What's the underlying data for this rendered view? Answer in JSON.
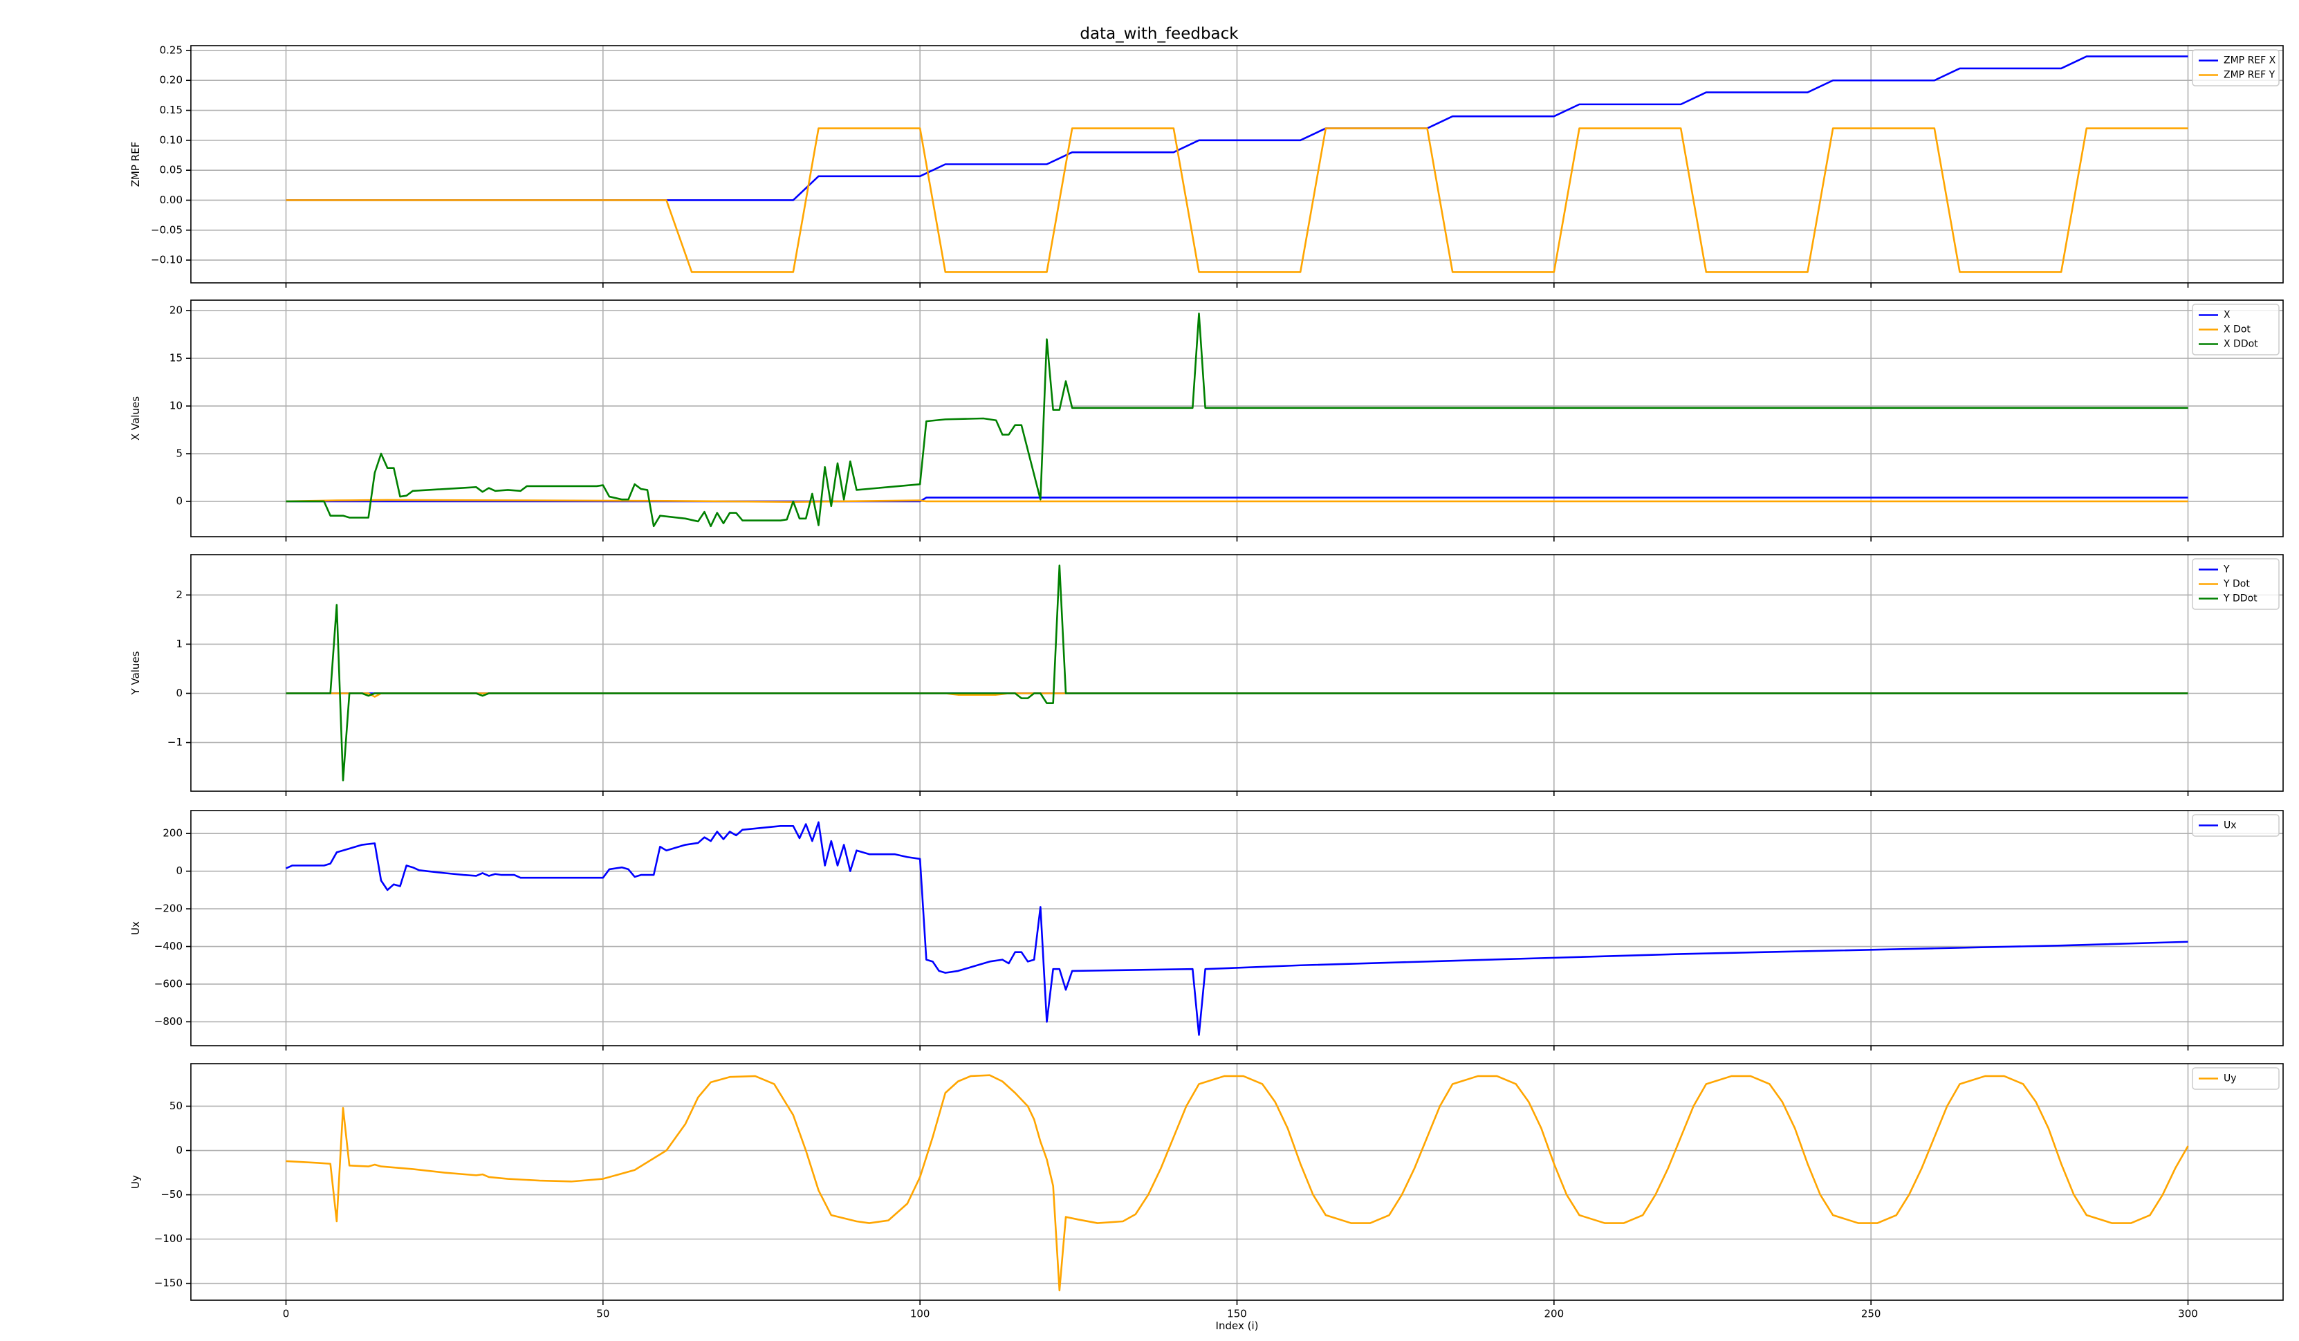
{
  "title": "data_with_feedback",
  "chart_data": [
    {
      "type": "line",
      "ylabel": "ZMP REF",
      "grid": true,
      "legend": "upper right",
      "xlim": [
        -15,
        315
      ],
      "xticks": [
        0,
        50,
        100,
        150,
        200,
        250,
        300
      ],
      "ylim": [
        -0.138,
        0.258
      ],
      "yticks": [
        {
          "value": -0.1,
          "label": "−0.10"
        },
        {
          "value": -0.05,
          "label": "−0.05"
        },
        {
          "value": 0,
          "label": "0.00"
        },
        {
          "value": 0.05,
          "label": "0.05"
        },
        {
          "value": 0.1,
          "label": "0.10"
        },
        {
          "value": 0.15,
          "label": "0.15"
        },
        {
          "value": 0.2,
          "label": "0.20"
        },
        {
          "value": 0.25,
          "label": "0.25"
        }
      ],
      "series": [
        {
          "name": "ZMP REF X",
          "color": "#0000ff",
          "x": [
            0,
            80,
            84,
            100,
            104,
            120,
            124,
            140,
            144,
            160,
            164,
            180,
            184,
            200,
            204,
            220,
            224,
            240,
            244,
            260,
            264,
            280,
            284,
            300
          ],
          "values": [
            0,
            0,
            0.04,
            0.04,
            0.06,
            0.06,
            0.08,
            0.08,
            0.1,
            0.1,
            0.12,
            0.12,
            0.14,
            0.14,
            0.16,
            0.16,
            0.18,
            0.18,
            0.2,
            0.2,
            0.22,
            0.22,
            0.24,
            0.24
          ]
        },
        {
          "name": "ZMP REF Y",
          "color": "#ffa500",
          "x": [
            0,
            60,
            64,
            80,
            84,
            100,
            104,
            120,
            124,
            140,
            144,
            160,
            164,
            180,
            184,
            200,
            204,
            220,
            224,
            240,
            244,
            260,
            264,
            280,
            284,
            300
          ],
          "values": [
            0,
            0,
            -0.12,
            -0.12,
            0.12,
            0.12,
            -0.12,
            -0.12,
            0.12,
            0.12,
            -0.12,
            -0.12,
            0.12,
            0.12,
            -0.12,
            -0.12,
            0.12,
            0.12,
            -0.12,
            -0.12,
            0.12,
            0.12,
            -0.12,
            -0.12,
            0.12,
            0.12
          ]
        }
      ]
    },
    {
      "type": "line",
      "ylabel": "X Values",
      "grid": true,
      "legend": "upper right",
      "xlim": [
        -15,
        315
      ],
      "xticks": [
        0,
        50,
        100,
        150,
        200,
        250,
        300
      ],
      "ylim": [
        -3.7,
        21.1
      ],
      "yticks": [
        0,
        5,
        10,
        15,
        20
      ],
      "series": [
        {
          "name": "X",
          "color": "#0000ff",
          "x": [
            0,
            100,
            101,
            300
          ],
          "values": [
            0,
            0,
            0.4,
            0.4
          ]
        },
        {
          "name": "X Dot",
          "color": "#ffa500",
          "x": [
            0,
            8,
            16,
            60,
            80,
            100,
            101,
            300
          ],
          "values": [
            0,
            0.1,
            0.15,
            0.05,
            -0.05,
            0.1,
            0,
            0
          ]
        },
        {
          "name": "X DDot",
          "color": "#008000",
          "x": [
            0,
            6,
            7,
            9,
            10,
            13,
            14,
            15,
            16,
            17,
            18,
            19,
            20,
            30,
            31,
            32,
            33,
            35,
            37,
            38,
            49,
            50,
            51,
            53,
            54,
            55,
            56,
            57,
            58,
            59,
            63,
            65,
            66,
            67,
            68,
            69,
            70,
            71,
            72,
            78,
            79,
            80,
            81,
            82,
            83,
            84,
            85,
            86,
            87,
            88,
            89,
            90,
            100,
            101,
            104,
            110,
            112,
            113,
            114,
            115,
            116,
            119,
            120,
            121,
            122,
            123,
            124,
            143,
            144,
            145,
            300
          ],
          "values": [
            0,
            0,
            -1.5,
            -1.5,
            -1.7,
            -1.7,
            3.0,
            5.0,
            3.5,
            3.5,
            0.5,
            0.6,
            1.1,
            1.5,
            1.0,
            1.4,
            1.1,
            1.2,
            1.1,
            1.6,
            1.6,
            1.7,
            0.5,
            0.2,
            0.2,
            1.8,
            1.3,
            1.2,
            -2.6,
            -1.5,
            -1.8,
            -2.1,
            -1.1,
            -2.6,
            -1.2,
            -2.3,
            -1.2,
            -1.2,
            -2.0,
            -2.0,
            -1.9,
            0,
            -1.8,
            -1.8,
            0.8,
            -2.5,
            3.6,
            -0.5,
            4.0,
            0.2,
            4.2,
            1.2,
            1.8,
            8.4,
            8.6,
            8.7,
            8.5,
            7.0,
            7.0,
            8.0,
            8.0,
            0.2,
            17.0,
            9.6,
            9.6,
            12.6,
            9.8,
            9.8,
            19.7,
            9.8,
            9.8
          ]
        }
      ]
    },
    {
      "type": "line",
      "ylabel": "Y Values",
      "grid": true,
      "legend": "upper right",
      "xlim": [
        -15,
        315
      ],
      "xticks": [
        0,
        50,
        100,
        150,
        200,
        250,
        300
      ],
      "ylim": [
        -1.99,
        2.82
      ],
      "yticks": [
        {
          "value": -1,
          "label": "−1"
        },
        0,
        1,
        2
      ],
      "series": [
        {
          "name": "Y",
          "color": "#0000ff",
          "x": [
            0,
            300
          ],
          "values": [
            0,
            0
          ]
        },
        {
          "name": "Y Dot",
          "color": "#ffa500",
          "x": [
            0,
            13,
            14,
            15,
            104,
            106,
            112,
            114,
            300
          ],
          "values": [
            0,
            0,
            -0.07,
            0,
            0,
            -0.03,
            -0.03,
            0,
            0
          ]
        },
        {
          "name": "Y DDot",
          "color": "#008000",
          "x": [
            0,
            7,
            8,
            9,
            10,
            12,
            13,
            14,
            30,
            31,
            32,
            115,
            116,
            117,
            118,
            119,
            120,
            121,
            122,
            123,
            300
          ],
          "values": [
            0,
            0,
            1.8,
            -1.77,
            0,
            0,
            -0.05,
            0,
            0,
            -0.05,
            0,
            0,
            -0.1,
            -0.1,
            0,
            0,
            -0.2,
            -0.2,
            2.6,
            0,
            0
          ]
        }
      ]
    },
    {
      "type": "line",
      "ylabel": "Ux",
      "grid": true,
      "legend": "upper right",
      "xlim": [
        -15,
        315
      ],
      "xticks": [
        0,
        50,
        100,
        150,
        200,
        250,
        300
      ],
      "ylim": [
        -927,
        322
      ],
      "yticks": [
        {
          "value": -800,
          "label": "−800"
        },
        {
          "value": -600,
          "label": "−600"
        },
        {
          "value": -400,
          "label": "−400"
        },
        {
          "value": -200,
          "label": "−200"
        },
        0,
        200
      ],
      "series": [
        {
          "name": "Ux",
          "color": "#0000ff",
          "x": [
            0,
            1,
            6,
            7,
            8,
            10,
            12,
            14,
            15,
            16,
            17,
            18,
            19,
            20,
            21,
            25,
            28,
            30,
            31,
            32,
            33,
            34,
            36,
            37,
            50,
            51,
            53,
            54,
            55,
            56,
            58,
            59,
            60,
            63,
            65,
            66,
            67,
            68,
            69,
            70,
            71,
            72,
            78,
            80,
            81,
            82,
            83,
            84,
            85,
            86,
            87,
            88,
            89,
            90,
            92,
            96,
            98,
            100,
            101,
            102,
            103,
            104,
            106,
            108,
            111,
            113,
            114,
            115,
            116,
            117,
            118,
            119,
            120,
            121,
            122,
            123,
            124,
            143,
            144,
            145,
            160,
            180,
            200,
            220,
            240,
            260,
            280,
            300
          ],
          "values": [
            15,
            30,
            30,
            40,
            100,
            120,
            140,
            148,
            -50,
            -100,
            -70,
            -80,
            30,
            20,
            5,
            -10,
            -20,
            -25,
            -10,
            -25,
            -15,
            -20,
            -20,
            -35,
            -35,
            10,
            20,
            10,
            -30,
            -20,
            -20,
            130,
            110,
            140,
            150,
            180,
            160,
            210,
            170,
            210,
            190,
            220,
            240,
            240,
            175,
            250,
            160,
            260,
            30,
            160,
            30,
            140,
            0,
            110,
            90,
            90,
            75,
            65,
            -470,
            -480,
            -530,
            -540,
            -530,
            -510,
            -480,
            -470,
            -490,
            -430,
            -430,
            -480,
            -470,
            -190,
            -800,
            -520,
            -520,
            -630,
            -530,
            -520,
            -870,
            -520,
            -500,
            -480,
            -460,
            -440,
            -425,
            -410,
            -395,
            -375
          ]
        }
      ]
    },
    {
      "type": "line",
      "ylabel": "Uy",
      "xlabel": "Index (i)",
      "grid": true,
      "legend": "upper right",
      "xlim": [
        -15,
        315
      ],
      "xticks": [
        0,
        50,
        100,
        150,
        200,
        250,
        300
      ],
      "ylim": [
        -169,
        98
      ],
      "yticks": [
        {
          "value": -150,
          "label": "−150"
        },
        {
          "value": -100,
          "label": "−100"
        },
        {
          "value": -50,
          "label": "−50"
        },
        0,
        50
      ],
      "series": [
        {
          "name": "Uy",
          "color": "#ffa500",
          "x": [
            0,
            5,
            7,
            8,
            9,
            10,
            13,
            14,
            15,
            20,
            25,
            30,
            31,
            32,
            35,
            40,
            45,
            50,
            55,
            60,
            63,
            65,
            67,
            70,
            74,
            77,
            80,
            82,
            84,
            86,
            90,
            92,
            95,
            98,
            100,
            102,
            104,
            106,
            108,
            111,
            113,
            115,
            117,
            118,
            119,
            120,
            121,
            122,
            123,
            125,
            128,
            132,
            134,
            136,
            138,
            140,
            142,
            144,
            148,
            151,
            154,
            156,
            158,
            160,
            162,
            164,
            168,
            171,
            174,
            176,
            178,
            180,
            182,
            184,
            188,
            191,
            194,
            196,
            198,
            200,
            202,
            204,
            208,
            211,
            214,
            216,
            218,
            220,
            222,
            224,
            228,
            231,
            234,
            236,
            238,
            240,
            242,
            244,
            248,
            251,
            254,
            256,
            258,
            260,
            262,
            264,
            268,
            271,
            274,
            276,
            278,
            280,
            282,
            284,
            288,
            291,
            294,
            296,
            298,
            300
          ],
          "values": [
            -12,
            -14,
            -15,
            -80,
            48,
            -17,
            -18,
            -16,
            -18,
            -21,
            -25,
            -28,
            -27,
            -30,
            -32,
            -34,
            -35,
            -32,
            -22,
            0,
            30,
            60,
            77,
            83,
            84,
            75,
            40,
            0,
            -45,
            -73,
            -80,
            -82,
            -79,
            -60,
            -30,
            15,
            65,
            78,
            84,
            85,
            78,
            65,
            50,
            35,
            10,
            -10,
            -40,
            -158,
            -75,
            -78,
            -82,
            -80,
            -72,
            -50,
            -20,
            15,
            50,
            75,
            84,
            84,
            75,
            55,
            25,
            -15,
            -50,
            -73,
            -82,
            -82,
            -73,
            -50,
            -20,
            15,
            50,
            75,
            84,
            84,
            75,
            55,
            25,
            -15,
            -50,
            -73,
            -82,
            -82,
            -73,
            -50,
            -20,
            15,
            50,
            75,
            84,
            84,
            75,
            55,
            25,
            -15,
            -50,
            -73,
            -82,
            -82,
            -73,
            -50,
            -20,
            15,
            50,
            75,
            84,
            84,
            75,
            55,
            25,
            -15,
            -50,
            -73,
            -82,
            -82,
            -73,
            -50,
            -20,
            5
          ]
        }
      ]
    }
  ]
}
